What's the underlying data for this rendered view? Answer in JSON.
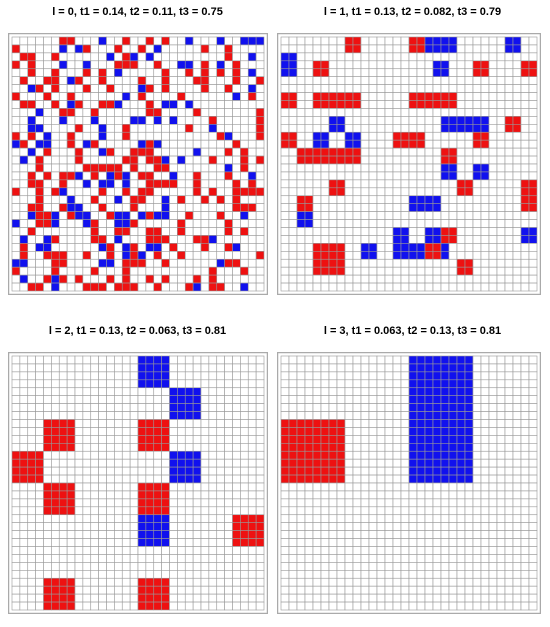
{
  "colors": {
    "red": "#ee1111",
    "blue": "#1111ee",
    "empty": "#ffffff",
    "gridline": "#999999",
    "frame": "#aaaaaa"
  },
  "panels": [
    {
      "title": "l = 0, t1 = 0.14, t2 = 0.11, t3 = 0.75",
      "grid_size": 32,
      "cells": [
        "......RR...B..R..R.R..B...B..BBB",
        "R.....B.BR...R..R.B.....R..R....",
        ".RR..R......B.RB.B.........R..B.",
        "R.R...B..B...RRR..R..BB.R.B.R...",
        "..R..R...R.R.B.....R..R.R.R.R.B.",
        ".R..RR.BR..R....R..R...RR...R..R",
        "..BR.R...R..R...BR.R....R..R..B.",
        "R...R..R......B.R....R......B.R.",
        ".RR..R.BR..RRB...R.BB.B.........",
        "...B..RR..R......RR....R.......R",
        "..B...B...B....BB.B.B....R.....R",
        "..BB....R..B..R.......R..B.....R",
        "R.R.B..R...B..R...........RB...R",
        "BR.BB..R.BR.....BRB.........R...",
        "..B.R...R..BR..RRR.....B...R.R..",
        ".B.R....R.....RR.RRB.B...R...R.R",
        "...R.....RRRRR.R..RR.......B.R..",
        "..R.R.RRB.R.BRB.RR..B..R...R..B.",
        "..RR..R..B.BB.B..RRRR..R....R.R.",
        "R..R.RB....R..R.RR.....R.R..RRRR",
        "...R...B..R..B.RR..B.R..R.R.R...",
        "..RR..RBB..R...R...B........RRR.",
        "..BRRB.RBB..RBB.BRBB..R...R..B..",
        "B..RRB...BR..BBR.....R.....R....",
        "..R.......R..RR..RR..R.....R.R..",
        ".B..BR....RR.B...RRR...RRB......",
        ".R.BB......BR.BR.BB.R...R..RB...",
        ".R..RRR..R..R.BRB.R..R.........R",
        "BB...RR....BB.RRR..R......BRR...",
        "R....R....R...R..........R...R..",
        ".B..RBR.R...R.R..R.R...R.R......",
        "..RR.B...RRR.RRR..R...RB.RR..B.."
      ]
    },
    {
      "title": "l = 1, t1 = 0.13, t2 = 0.082, t3 = 0.79",
      "grid_size": 32,
      "cells": [
        "........RR......RRBBBB......BB..",
        "........RR......RRBBBB......BB..",
        "BB..............................",
        "BB..RR.............BB...RR....RR",
        "BB..RR.............BB...RR....RR",
        "................................",
        "................................",
        "RR..RRRRRR......RRRRRR..........",
        "RR..RRRRRR......RRRRRR..........",
        "................................",
        "......BB............BBBBBB..RR..",
        "......BB............BBBBBB..RR..",
        "RR..BB..BB....RRRR......RR......",
        "RR..BB..BB....RRRR......RR......",
        "..RRRRRRRR..........RR..........",
        "..RRRRRRRR..........RR..........",
        "....................BB..BB......",
        "....................BB..BB......",
        "......RR..............RR......RR",
        "......RR..............RR......RR",
        "..RR............BBBB..........RR",
        "..RR............BBBB..........RR",
        "..BB............................",
        "..BB............................",
        "..............BB..BBRR........BB",
        "..............BB..BBRR........BB",
        "....RRRR..BB..BBBBRRB...........",
        "....RRRR..BB..BBBBRRB...........",
        "....RRRR..............RR........",
        "....RRRR..............RR........",
        "................................",
        "................................"
      ]
    },
    {
      "title": "l = 2, t1 = 0.13, t2 = 0.063, t3 = 0.81",
      "grid_size": 32,
      "cells": [
        "................BBBB............",
        "................BBBB............",
        "................BBBB............",
        "................BBBB............",
        "....................BBBB........",
        "....................BBBB........",
        "....................BBBB........",
        "....................BBBB........",
        "....RRRR........RRRR............",
        "....RRRR........RRRR............",
        "....RRRR........RRRR............",
        "....RRRR........RRRR............",
        "RRRR................BBBB........",
        "RRRR................BBBB........",
        "RRRR................BBBB........",
        "RRRR................BBBB........",
        "....RRRR........RRRR............",
        "....RRRR........RRRR............",
        "....RRRR........RRRR............",
        "....RRRR........RRRR............",
        "................BBBB........RRRR",
        "................BBBB........RRRR",
        "................BBBB........RRRR",
        "................BBBB........RRRR",
        "................................",
        "................................",
        "................................",
        "................................",
        "....RRRR........RRRR............",
        "....RRRR........RRRR............",
        "....RRRR........RRRR............",
        "....RRRR........RRRR............"
      ]
    },
    {
      "title": "l = 3, t1 = 0.063, t2 = 0.13, t3 = 0.81",
      "grid_size": 32,
      "cells": [
        "................BBBBBBBB........",
        "................BBBBBBBB........",
        "................BBBBBBBB........",
        "................BBBBBBBB........",
        "................BBBBBBBB........",
        "................BBBBBBBB........",
        "................BBBBBBBB........",
        "................BBBBBBBB........",
        "RRRRRRRR........BBBBBBBB........",
        "RRRRRRRR........BBBBBBBB........",
        "RRRRRRRR........BBBBBBBB........",
        "RRRRRRRR........BBBBBBBB........",
        "RRRRRRRR........BBBBBBBB........",
        "RRRRRRRR........BBBBBBBB........",
        "RRRRRRRR........BBBBBBBB........",
        "RRRRRRRR........BBBBBBBB........",
        "................................",
        "................................",
        "................................",
        "................................",
        "................................",
        "................................",
        "................................",
        "................................",
        "................................",
        "................................",
        "................................",
        "................................",
        "................................",
        "................................",
        "................................",
        "................................"
      ]
    }
  ]
}
